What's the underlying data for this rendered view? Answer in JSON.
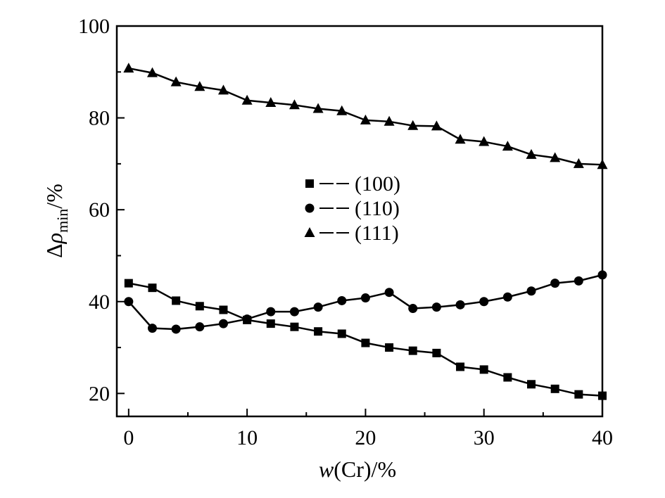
{
  "chart_data": {
    "type": "line",
    "title": "",
    "xlabel_prefix": "w",
    "xlabel_suffix": "(Cr)/%",
    "ylabel_prefix": "Δ",
    "ylabel_symbol": "ρ",
    "ylabel_subscript": "min",
    "ylabel_suffix": "/%",
    "xlim": [
      -1,
      40
    ],
    "ylim": [
      15,
      100
    ],
    "xticks": [
      0,
      10,
      20,
      30,
      40
    ],
    "yticks": [
      20,
      40,
      60,
      80,
      100
    ],
    "grid": false,
    "legend_position": "center",
    "x": [
      0,
      2,
      4,
      6,
      8,
      10,
      12,
      14,
      16,
      18,
      20,
      22,
      24,
      26,
      28,
      30,
      32,
      34,
      36,
      38,
      40
    ],
    "series": [
      {
        "name": "(100)",
        "marker": "square",
        "values": [
          44,
          43,
          40.2,
          39,
          38.2,
          36,
          35.2,
          34.5,
          33.5,
          33,
          31,
          30,
          29.3,
          28.8,
          25.8,
          25.2,
          23.5,
          22,
          21,
          19.8,
          19.5
        ]
      },
      {
        "name": "(110)",
        "marker": "circle",
        "values": [
          40,
          34.2,
          34,
          34.5,
          35.2,
          36.2,
          37.8,
          37.8,
          38.8,
          40.2,
          40.8,
          42,
          38.5,
          38.8,
          39.3,
          40,
          41,
          42.3,
          44,
          44.5,
          45.8
        ]
      },
      {
        "name": "(111)",
        "marker": "triangle",
        "values": [
          90.8,
          89.8,
          87.8,
          86.8,
          86,
          83.8,
          83.3,
          82.8,
          82,
          81.5,
          79.5,
          79.2,
          78.3,
          78.2,
          75.3,
          74.8,
          73.8,
          72,
          71.3,
          70,
          69.8
        ]
      }
    ],
    "colors": {
      "line": "#000000",
      "background": "#ffffff"
    }
  }
}
